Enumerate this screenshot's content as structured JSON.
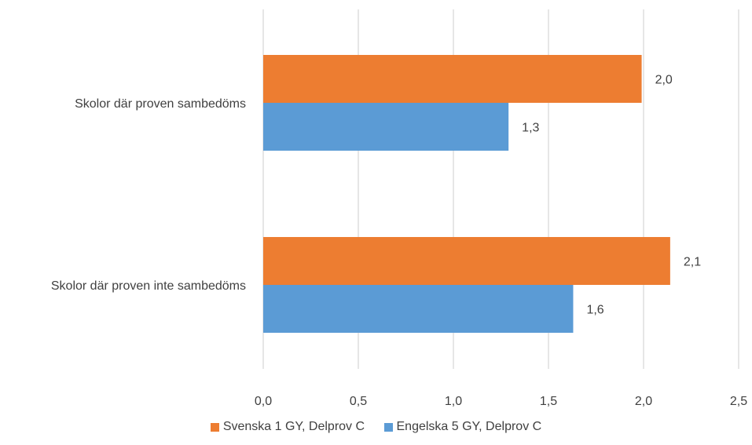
{
  "chart_data": {
    "type": "bar",
    "orientation": "horizontal",
    "categories": [
      "Skolor där proven sambedöms",
      "Skolor där proven inte sambedöms"
    ],
    "series": [
      {
        "name": "Svenska 1 GY, Delprov C",
        "color": "#ED7D31",
        "values": [
          1.99,
          2.14
        ],
        "labels": [
          "2,0",
          "2,1"
        ]
      },
      {
        "name": "Engelska 5 GY, Delprov C",
        "color": "#5B9BD5",
        "values": [
          1.29,
          1.63
        ],
        "labels": [
          "1,3",
          "1,6"
        ]
      }
    ],
    "xlim": [
      0,
      2.5
    ],
    "xticks": [
      0,
      0.5,
      1,
      1.5,
      2,
      2.5
    ],
    "xtick_labels": [
      "0,0",
      "0,5",
      "1,0",
      "1,5",
      "2,0",
      "2,5"
    ],
    "grid": true,
    "legend_position": "bottom",
    "gridline_color": "#D9D9D9"
  }
}
